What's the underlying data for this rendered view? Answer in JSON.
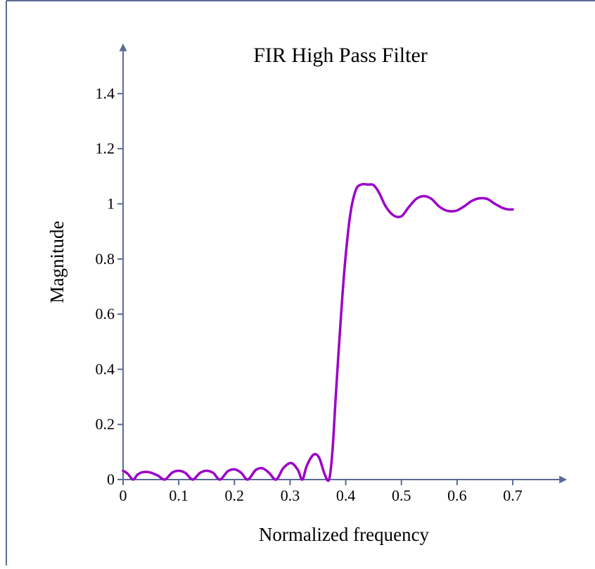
{
  "colors": {
    "axis": "#5b6b96",
    "curve": "#9b00c8",
    "border": "#5b6b96"
  },
  "chart_data": {
    "type": "line",
    "title": "FIR High Pass Filter",
    "xlabel": "Normalized frequency",
    "ylabel": "Magnitude",
    "xlim": [
      0,
      0.78
    ],
    "ylim": [
      0,
      1.5
    ],
    "x_ticks": [
      0,
      0.1,
      0.2,
      0.3,
      0.4,
      0.5,
      0.6,
      0.7
    ],
    "x_tick_labels": [
      "0",
      "0.1",
      "0.2",
      "0.3",
      "0.4",
      "0.5",
      "0.6",
      "0.7"
    ],
    "y_ticks": [
      0,
      0.2,
      0.4,
      0.6,
      0.8,
      1.0,
      1.2,
      1.4
    ],
    "y_tick_labels": [
      "0",
      "0.2",
      "0.4",
      "0.6",
      "0.8",
      "1",
      "1.2",
      "1.4"
    ],
    "grid": false,
    "legend": "none",
    "series": [
      {
        "x": [
          0.0,
          0.008,
          0.018,
          0.026,
          0.036,
          0.048,
          0.062,
          0.075,
          0.088,
          0.1,
          0.112,
          0.125,
          0.138,
          0.15,
          0.162,
          0.174,
          0.188,
          0.2,
          0.212,
          0.224,
          0.238,
          0.25,
          0.262,
          0.275,
          0.288,
          0.302,
          0.314,
          0.322,
          0.33,
          0.342,
          0.352,
          0.362,
          0.37,
          0.376,
          0.382,
          0.39,
          0.398,
          0.408,
          0.418,
          0.428,
          0.44,
          0.45,
          0.46,
          0.472,
          0.486,
          0.5,
          0.512,
          0.526,
          0.54,
          0.554,
          0.568,
          0.582,
          0.598,
          0.612,
          0.626,
          0.64,
          0.654,
          0.668,
          0.682,
          0.692,
          0.7
        ],
        "y": [
          0.032,
          0.022,
          0.0,
          0.018,
          0.027,
          0.026,
          0.015,
          0.0,
          0.025,
          0.032,
          0.024,
          0.0,
          0.024,
          0.032,
          0.024,
          0.0,
          0.03,
          0.037,
          0.025,
          0.0,
          0.034,
          0.041,
          0.025,
          0.0,
          0.042,
          0.06,
          0.035,
          0.0,
          0.05,
          0.09,
          0.08,
          0.02,
          0.0,
          0.1,
          0.3,
          0.55,
          0.77,
          0.96,
          1.05,
          1.07,
          1.07,
          1.068,
          1.04,
          0.99,
          0.958,
          0.955,
          0.985,
          1.017,
          1.028,
          1.018,
          0.99,
          0.975,
          0.975,
          0.99,
          1.01,
          1.02,
          1.018,
          1.0,
          0.985,
          0.98,
          0.98
        ]
      }
    ]
  }
}
